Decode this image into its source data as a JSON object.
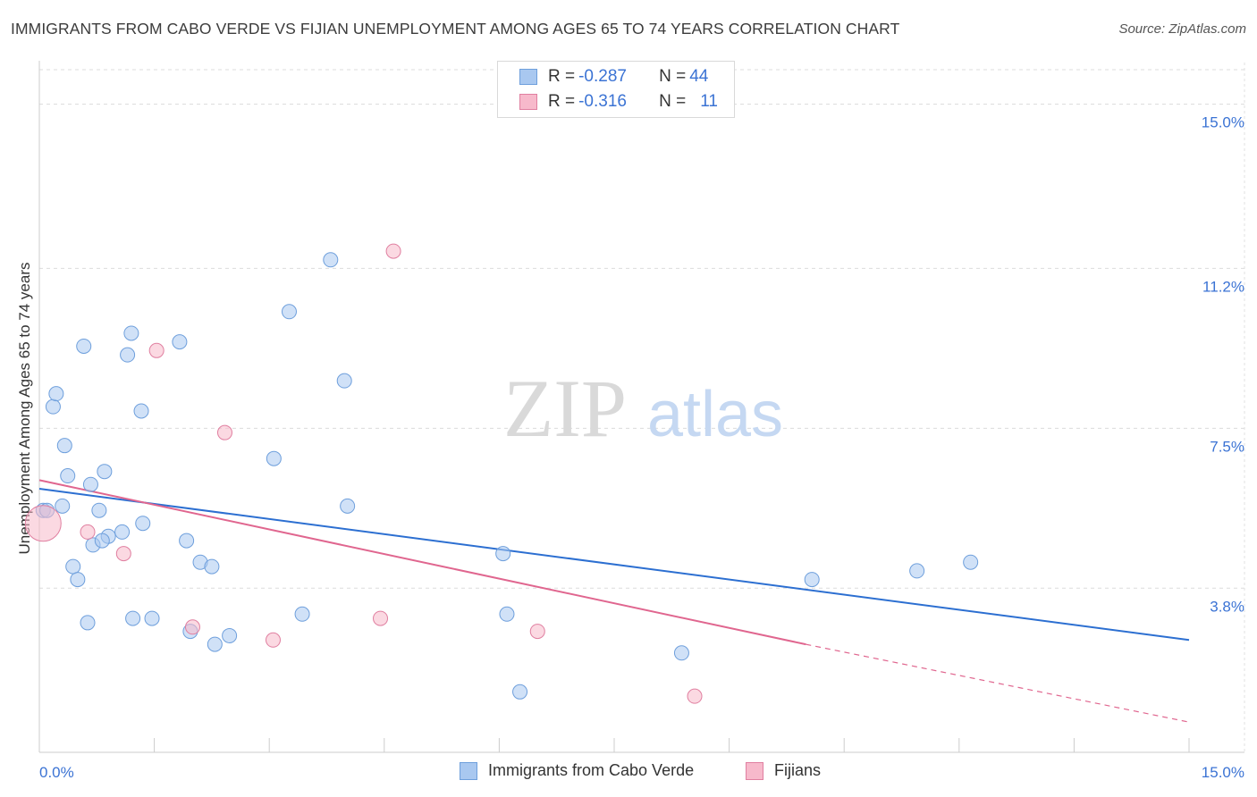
{
  "chart_data": {
    "type": "scatter",
    "title": "IMMIGRANTS FROM CABO VERDE VS FIJIAN UNEMPLOYMENT AMONG AGES 65 TO 74 YEARS CORRELATION CHART",
    "source": "Source: ZipAtlas.com",
    "xlabel": "",
    "ylabel": "Unemployment Among Ages 65 to 74 years",
    "xlim": [
      0,
      15
    ],
    "ylim": [
      0,
      15.8
    ],
    "x_tick_labels": [
      "0.0%",
      "15.0%"
    ],
    "y_ticks": [
      {
        "value": 3.8,
        "label": "3.8%"
      },
      {
        "value": 7.5,
        "label": "7.5%"
      },
      {
        "value": 11.2,
        "label": "11.2%"
      },
      {
        "value": 15.0,
        "label": "15.0%"
      }
    ],
    "watermark": {
      "zip": "ZIP",
      "atlas": "atlas"
    },
    "legend": [
      {
        "r_label": "R = ",
        "r_value": "-0.287",
        "n_label": "N = ",
        "n_value": "44"
      },
      {
        "r_label": "R = ",
        "r_value": "-0.316",
        "n_label": "N = ",
        "n_value": "11"
      }
    ],
    "series": [
      {
        "name": "Immigrants from Cabo Verde",
        "color": "#a9c8f0",
        "stroke": "#6e9fdc",
        "line_color": "#2c6fd1",
        "trend": {
          "x0": 0.0,
          "y0": 6.1,
          "x1": 15.0,
          "y1": 2.6
        },
        "points": [
          [
            0.05,
            5.6
          ],
          [
            0.1,
            5.6
          ],
          [
            0.3,
            5.7
          ],
          [
            0.18,
            8.0
          ],
          [
            0.22,
            8.3
          ],
          [
            0.33,
            7.1
          ],
          [
            0.37,
            6.4
          ],
          [
            0.44,
            4.3
          ],
          [
            0.5,
            4.0
          ],
          [
            0.58,
            9.4
          ],
          [
            0.63,
            3.0
          ],
          [
            0.67,
            6.2
          ],
          [
            0.7,
            4.8
          ],
          [
            0.78,
            5.6
          ],
          [
            0.85,
            6.5
          ],
          [
            0.9,
            5.0
          ],
          [
            0.82,
            4.9
          ],
          [
            1.08,
            5.1
          ],
          [
            1.15,
            9.2
          ],
          [
            1.2,
            9.7
          ],
          [
            1.22,
            3.1
          ],
          [
            1.33,
            7.9
          ],
          [
            1.35,
            5.3
          ],
          [
            1.47,
            3.1
          ],
          [
            1.83,
            9.5
          ],
          [
            1.92,
            4.9
          ],
          [
            1.97,
            2.8
          ],
          [
            2.1,
            4.4
          ],
          [
            2.25,
            4.3
          ],
          [
            2.29,
            2.5
          ],
          [
            2.48,
            2.7
          ],
          [
            3.06,
            6.8
          ],
          [
            3.26,
            10.2
          ],
          [
            3.43,
            3.2
          ],
          [
            3.8,
            11.4
          ],
          [
            3.98,
            8.6
          ],
          [
            4.02,
            5.7
          ],
          [
            6.05,
            4.6
          ],
          [
            6.1,
            3.2
          ],
          [
            6.27,
            1.4
          ],
          [
            8.38,
            2.3
          ],
          [
            10.08,
            4.0
          ],
          [
            11.45,
            4.2
          ],
          [
            12.15,
            4.4
          ]
        ]
      },
      {
        "name": "Fijians",
        "color": "#f7b9cb",
        "stroke": "#e07fa0",
        "line_color": "#e0668f",
        "trend": {
          "x0": 0.0,
          "y0": 6.3,
          "x1": 10.0,
          "y1": 2.5
        },
        "trend_dashed_to": {
          "x": 15.0,
          "y": 0.7
        },
        "points": [
          [
            0.05,
            5.3
          ],
          [
            0.63,
            5.1
          ],
          [
            1.1,
            4.6
          ],
          [
            1.53,
            9.3
          ],
          [
            2.0,
            2.9
          ],
          [
            2.42,
            7.4
          ],
          [
            3.05,
            2.6
          ],
          [
            4.45,
            3.1
          ],
          [
            4.62,
            11.6
          ],
          [
            6.5,
            2.8
          ],
          [
            8.55,
            1.3
          ]
        ]
      }
    ]
  }
}
